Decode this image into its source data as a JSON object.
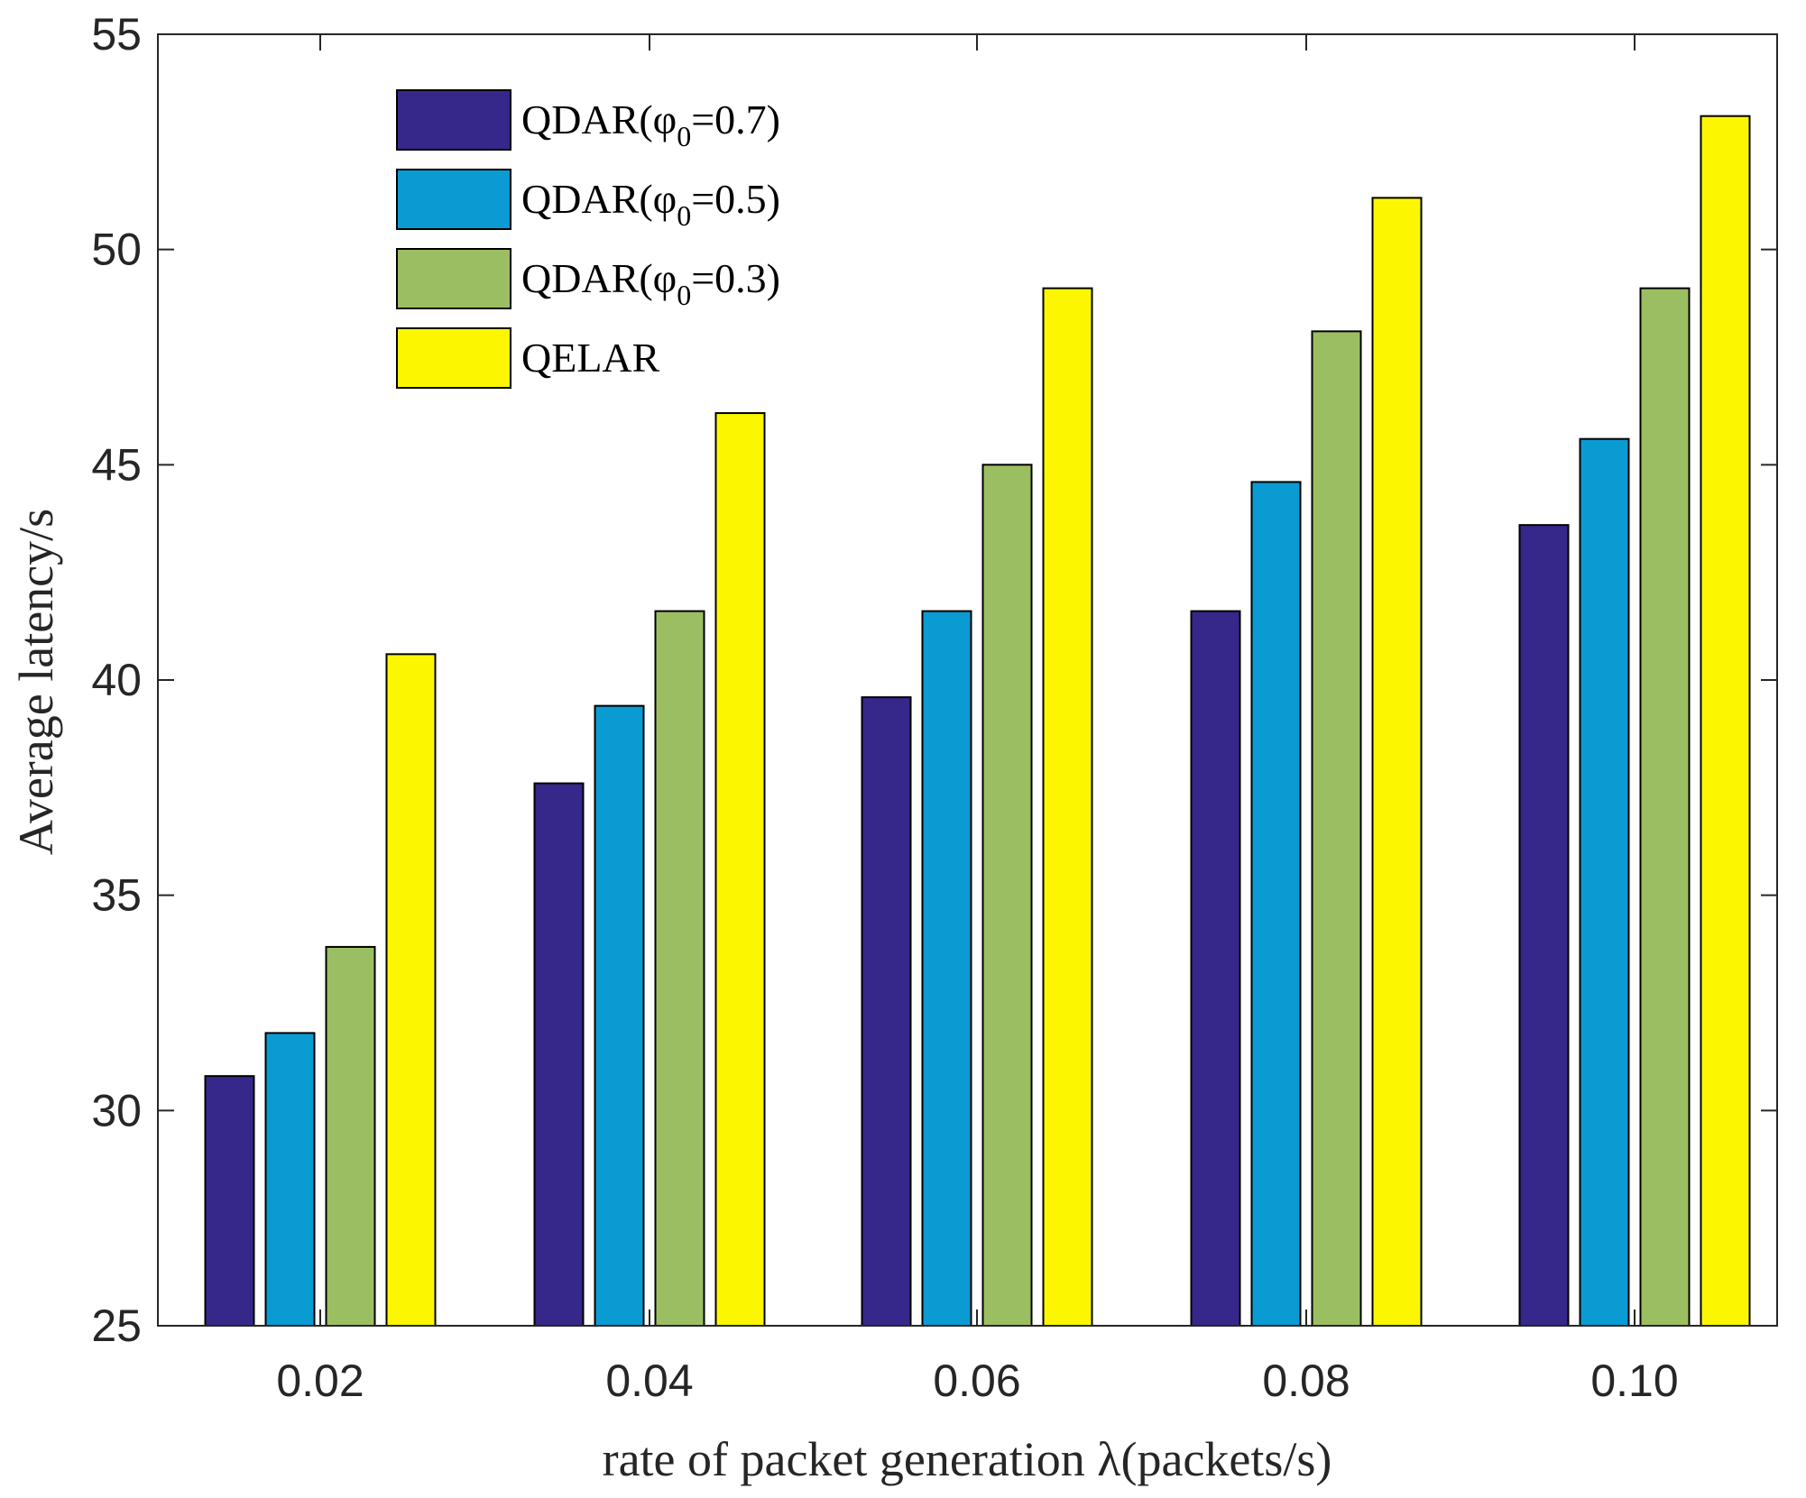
{
  "chart_data": {
    "type": "bar",
    "title": "",
    "xlabel": "rate of packet generation λ(packets/s)",
    "ylabel": "Average latency/s",
    "ylim": [
      25,
      55
    ],
    "yticks": [
      25,
      30,
      35,
      40,
      45,
      50,
      55
    ],
    "categories": [
      "0.02",
      "0.04",
      "0.06",
      "0.08",
      "0.10"
    ],
    "series": [
      {
        "name": "QDAR(φ0=0.7)",
        "label_main": "QDAR(φ",
        "label_sub": "0",
        "label_tail": "=0.7)",
        "color": "#35288a",
        "values": [
          30.8,
          37.6,
          39.6,
          41.6,
          43.6
        ]
      },
      {
        "name": "QDAR(φ0=0.5)",
        "label_main": "QDAR(φ",
        "label_sub": "0",
        "label_tail": "=0.5)",
        "color": "#0a9bd3",
        "values": [
          31.8,
          39.4,
          41.6,
          44.6,
          45.6
        ]
      },
      {
        "name": "QDAR(φ0=0.3)",
        "label_main": "QDAR(φ",
        "label_sub": "0",
        "label_tail": "=0.3)",
        "color": "#9cbe62",
        "values": [
          33.8,
          41.6,
          45.0,
          48.1,
          49.1
        ]
      },
      {
        "name": "QELAR",
        "label_main": "QELAR",
        "label_sub": "",
        "label_tail": "",
        "color": "#fcf700",
        "values": [
          40.6,
          46.2,
          49.1,
          51.2,
          53.1
        ]
      }
    ],
    "legend_position": "top-left",
    "grid": false
  }
}
